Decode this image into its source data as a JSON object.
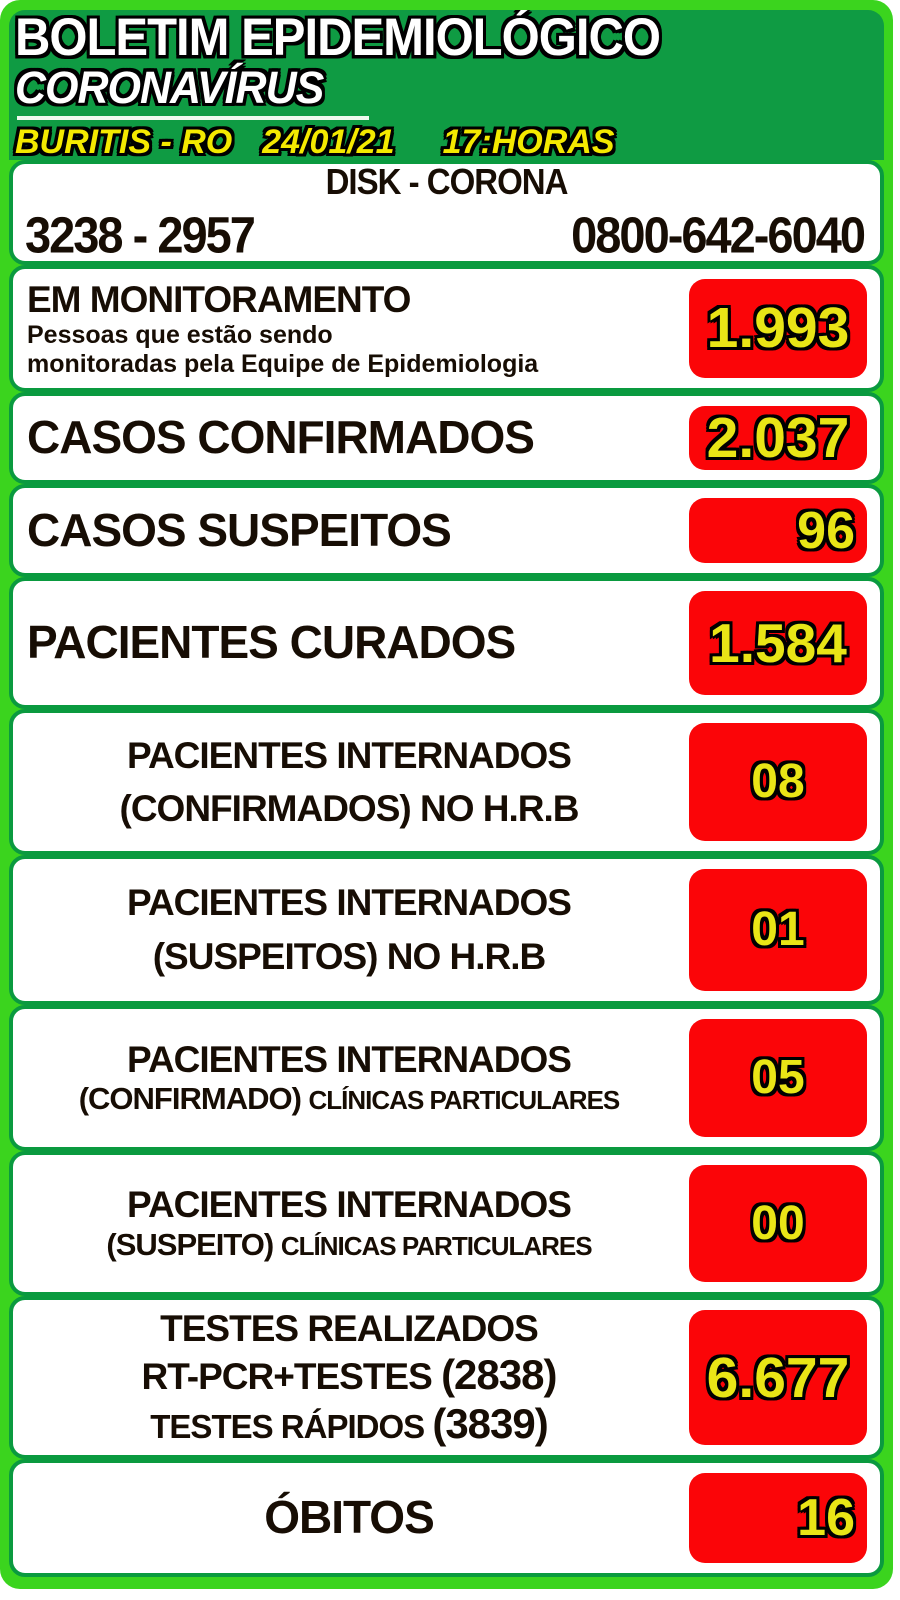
{
  "colors": {
    "frame_green": "#3bd41e",
    "header_green": "#0f9b43",
    "card_border_green": "#0a9a3f",
    "stat_box_red": "#fb0508",
    "number_yellow": "#e9e516",
    "header_line_yellow": "#f4e900",
    "label_text": "#170d04"
  },
  "header": {
    "title": "BOLETIM EPIDEMIOLÓGICO",
    "subtitle": "CORONAVÍRUS",
    "location": "BURITIS - RO",
    "date": "24/01/21",
    "time": "17:HORAS"
  },
  "disk_corona": {
    "title": "DISK - CORONA",
    "phone_local": "3238 - 2957",
    "phone_tollfree": "0800-642-6040"
  },
  "stats": [
    {
      "id": "em-monitoramento",
      "lines": [
        [
          {
            "text": "EM MONITORAMENTO",
            "style": "t-lg"
          }
        ],
        [
          {
            "text": "Pessoas que estão sendo",
            "style": "t-sub"
          }
        ],
        [
          {
            "text": "monitoradas pela Equipe de Epidemiologia",
            "style": "t-sub"
          }
        ]
      ],
      "value": "1.993"
    },
    {
      "id": "casos-confirmados",
      "lines": [
        [
          {
            "text": "CASOS CONFIRMADOS",
            "style": "t-xl"
          }
        ]
      ],
      "value": "2.037"
    },
    {
      "id": "casos-suspeitos",
      "lines": [
        [
          {
            "text": "CASOS SUSPEITOS",
            "style": "t-xl"
          }
        ]
      ],
      "value": "96"
    },
    {
      "id": "pacientes-curados",
      "lines": [
        [
          {
            "text": "PACIENTES CURADOS",
            "style": "t-xl"
          }
        ]
      ],
      "value": "1.584"
    },
    {
      "id": "internados-hrb-confirmados",
      "lines": [
        [
          {
            "text": "PACIENTES INTERNADOS",
            "style": "t-md"
          }
        ],
        [
          {
            "text": "(CONFIRMADOS) NO H.R.B",
            "style": "t-md"
          }
        ]
      ],
      "value": "08"
    },
    {
      "id": "internados-hrb-suspeitos",
      "lines": [
        [
          {
            "text": "PACIENTES INTERNADOS",
            "style": "t-md"
          }
        ],
        [
          {
            "text": "(SUSPEITOS) NO H.R.B",
            "style": "t-md"
          }
        ]
      ],
      "value": "01"
    },
    {
      "id": "internados-clinicas-confirmado",
      "lines": [
        [
          {
            "text": "PACIENTES INTERNADOS",
            "style": "t-md"
          }
        ],
        [
          {
            "text": "(CONFIRMADO) ",
            "style": "t-md2"
          },
          {
            "text": "CLÍNICAS PARTICULARES",
            "style": "t-sm"
          }
        ]
      ],
      "value": "05"
    },
    {
      "id": "internados-clinicas-suspeito",
      "lines": [
        [
          {
            "text": "PACIENTES INTERNADOS",
            "style": "t-md"
          }
        ],
        [
          {
            "text": "(SUSPEITO) ",
            "style": "t-md2"
          },
          {
            "text": "CLÍNICAS PARTICULARES",
            "style": "t-sm"
          }
        ]
      ],
      "value": "00"
    },
    {
      "id": "testes-realizados",
      "lines": [
        [
          {
            "text": "TESTES REALIZADOS",
            "style": "t-md"
          }
        ],
        [
          {
            "text": "RT-PCR+TESTES ",
            "style": "t-md"
          },
          {
            "text": " (2838)",
            "style": "t-par"
          }
        ],
        [
          {
            "text": "TESTES RÁPIDOS ",
            "style": "t-sm2"
          },
          {
            "text": "(3839)",
            "style": "t-par"
          }
        ]
      ],
      "value": "6.677"
    },
    {
      "id": "obitos",
      "lines": [
        [
          {
            "text": "ÓBITOS",
            "style": "t-xl"
          }
        ]
      ],
      "value": "16"
    }
  ]
}
